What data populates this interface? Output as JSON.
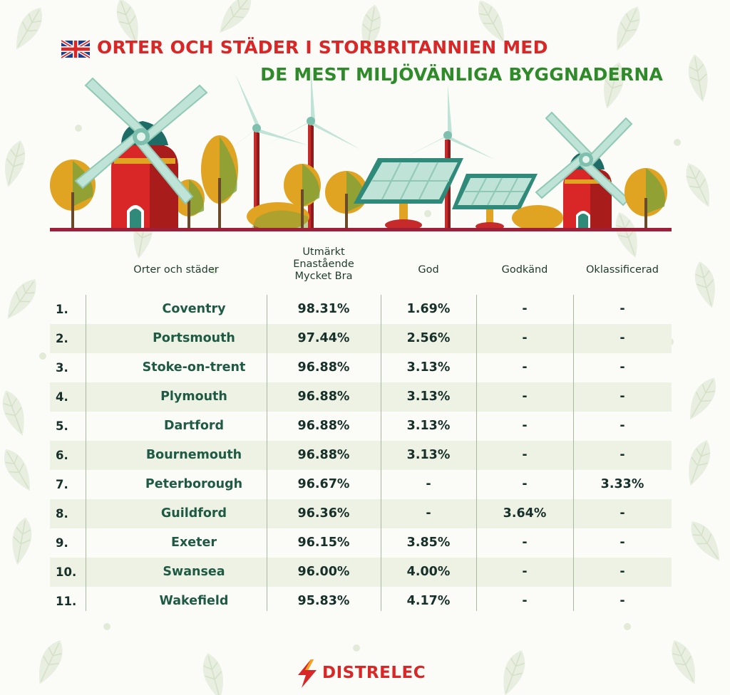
{
  "title": {
    "line1": "ORTER OCH STÄDER I STORBRITANNIEN MED",
    "line2": "DE MEST MILJÖVÄNLIGA BYGGNADERNA",
    "flag_icon": "uk-flag-icon",
    "line1_color": "#d92626",
    "line2_color": "#2f8a2a"
  },
  "columns": {
    "city": "Orter och städer",
    "excellent": [
      "Utmärkt",
      "Enastående",
      "Mycket Bra"
    ],
    "good": "God",
    "pass": "Godkänd",
    "unclassified": "Oklassificerad"
  },
  "chart_data": {
    "type": "table",
    "columns": [
      "Orter och städer",
      "Utmärkt Enastående Mycket Bra",
      "God",
      "Godkänd",
      "Oklassificerad"
    ],
    "rows": [
      {
        "rank": "1.",
        "city": "Coventry",
        "excellent": "98.31%",
        "good": "1.69%",
        "pass": "-",
        "unclassified": "-"
      },
      {
        "rank": "2.",
        "city": "Portsmouth",
        "excellent": "97.44%",
        "good": "2.56%",
        "pass": "-",
        "unclassified": "-"
      },
      {
        "rank": "3.",
        "city": "Stoke-on-trent",
        "excellent": "96.88%",
        "good": "3.13%",
        "pass": "-",
        "unclassified": "-"
      },
      {
        "rank": "4.",
        "city": "Plymouth",
        "excellent": "96.88%",
        "good": "3.13%",
        "pass": "-",
        "unclassified": "-"
      },
      {
        "rank": "5.",
        "city": "Dartford",
        "excellent": "96.88%",
        "good": "3.13%",
        "pass": "-",
        "unclassified": "-"
      },
      {
        "rank": "6.",
        "city": "Bournemouth",
        "excellent": "96.88%",
        "good": "3.13%",
        "pass": "-",
        "unclassified": "-"
      },
      {
        "rank": "7.",
        "city": "Peterborough",
        "excellent": "96.67%",
        "good": "-",
        "pass": "-",
        "unclassified": "3.33%"
      },
      {
        "rank": "8.",
        "city": "Guildford",
        "excellent": "96.36%",
        "good": "-",
        "pass": "3.64%",
        "unclassified": "-"
      },
      {
        "rank": "9.",
        "city": "Exeter",
        "excellent": "96.15%",
        "good": "3.85%",
        "pass": "-",
        "unclassified": "-"
      },
      {
        "rank": "10.",
        "city": "Swansea",
        "excellent": "96.00%",
        "good": "4.00%",
        "pass": "-",
        "unclassified": "-"
      },
      {
        "rank": "11.",
        "city": "Wakefield",
        "excellent": "95.83%",
        "good": "4.17%",
        "pass": "-",
        "unclassified": "-"
      }
    ]
  },
  "footer": {
    "brand": "DISTRELEC",
    "brand_color": "#d92626",
    "logo_icon": "lightning-bolt-icon"
  }
}
